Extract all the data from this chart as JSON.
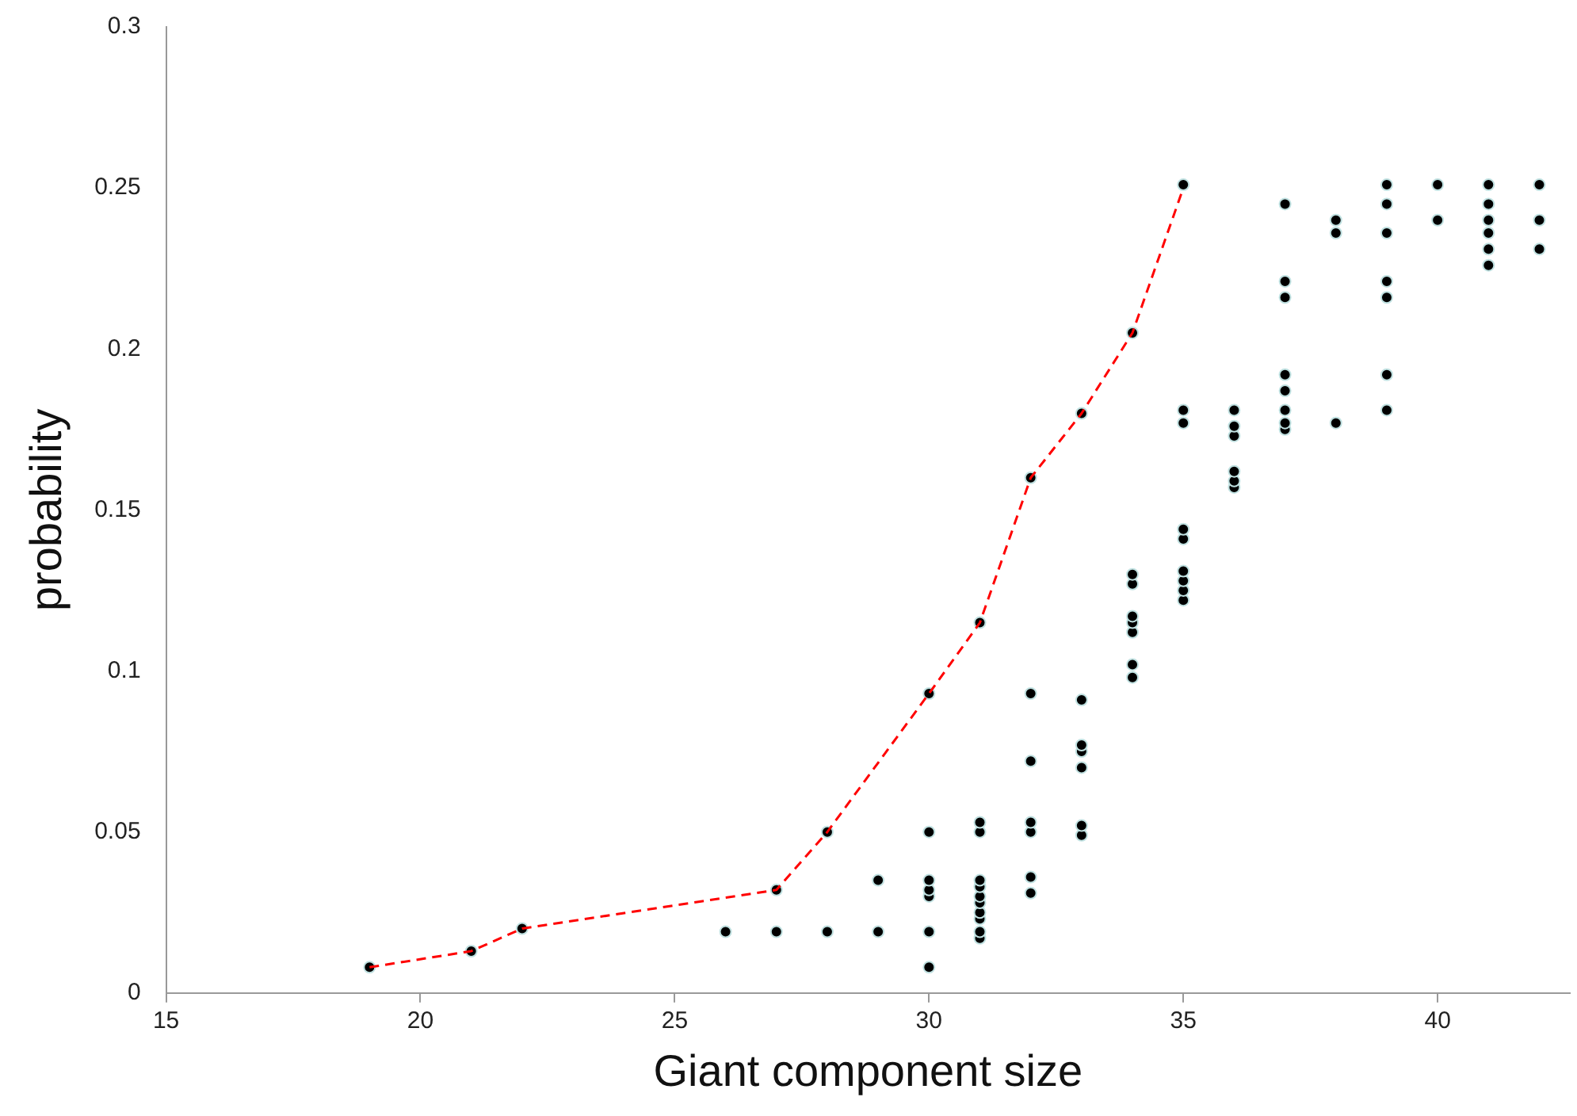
{
  "chart_data": {
    "type": "scatter",
    "xlabel": "Giant component size",
    "ylabel": "probability",
    "xlim": [
      15,
      42.6
    ],
    "xticks": [
      15,
      20,
      25,
      30,
      35,
      40
    ],
    "ylim": [
      0,
      0.3
    ],
    "yticks": [
      0,
      0.05,
      0.1,
      0.15,
      0.2,
      0.25,
      0.3
    ],
    "grid": false,
    "legend": false,
    "marker": "circle",
    "series": [
      {
        "type": "line",
        "color": "#ff0000",
        "line_style": "dashed",
        "marker": "none",
        "x": [
          19,
          21,
          22,
          27,
          28,
          30,
          31,
          32,
          33,
          34,
          35
        ],
        "values": [
          0.008,
          0.013,
          0.02,
          0.032,
          0.05,
          0.093,
          0.115,
          0.16,
          0.18,
          0.205,
          0.25
        ]
      },
      {
        "type": "scatter",
        "color": "#000000",
        "x": [
          19,
          21,
          22,
          26,
          27,
          27,
          28,
          28,
          29,
          29,
          30,
          30,
          30,
          30,
          30,
          30,
          30,
          31,
          31,
          31,
          31,
          31,
          31,
          31,
          31,
          31,
          31,
          31,
          32,
          32,
          32,
          32,
          32,
          32,
          32,
          33,
          33,
          33,
          33,
          33,
          33,
          33,
          34,
          34,
          34,
          34,
          34,
          34,
          34,
          34,
          35,
          35,
          35,
          35,
          35,
          35,
          35,
          35,
          35,
          36,
          36,
          36,
          36,
          36,
          36,
          37,
          37,
          37,
          37,
          37,
          37,
          37,
          37,
          38,
          38,
          38,
          39,
          39,
          39,
          39,
          39,
          39,
          39,
          40,
          40,
          41,
          41,
          41,
          41,
          41,
          41,
          42,
          42,
          42
        ],
        "values": [
          0.008,
          0.013,
          0.02,
          0.019,
          0.019,
          0.032,
          0.019,
          0.05,
          0.019,
          0.035,
          0.008,
          0.019,
          0.03,
          0.032,
          0.035,
          0.05,
          0.093,
          0.017,
          0.019,
          0.023,
          0.025,
          0.028,
          0.03,
          0.033,
          0.035,
          0.05,
          0.053,
          0.115,
          0.031,
          0.036,
          0.05,
          0.053,
          0.072,
          0.093,
          0.16,
          0.049,
          0.052,
          0.07,
          0.075,
          0.077,
          0.091,
          0.18,
          0.098,
          0.102,
          0.112,
          0.115,
          0.117,
          0.127,
          0.13,
          0.205,
          0.122,
          0.125,
          0.128,
          0.131,
          0.141,
          0.144,
          0.177,
          0.181,
          0.251,
          0.157,
          0.159,
          0.162,
          0.173,
          0.176,
          0.181,
          0.175,
          0.177,
          0.181,
          0.187,
          0.192,
          0.216,
          0.221,
          0.245,
          0.177,
          0.236,
          0.24,
          0.181,
          0.192,
          0.216,
          0.221,
          0.236,
          0.245,
          0.251,
          0.24,
          0.251,
          0.226,
          0.231,
          0.236,
          0.24,
          0.245,
          0.251,
          0.231,
          0.24,
          0.251
        ]
      }
    ]
  }
}
